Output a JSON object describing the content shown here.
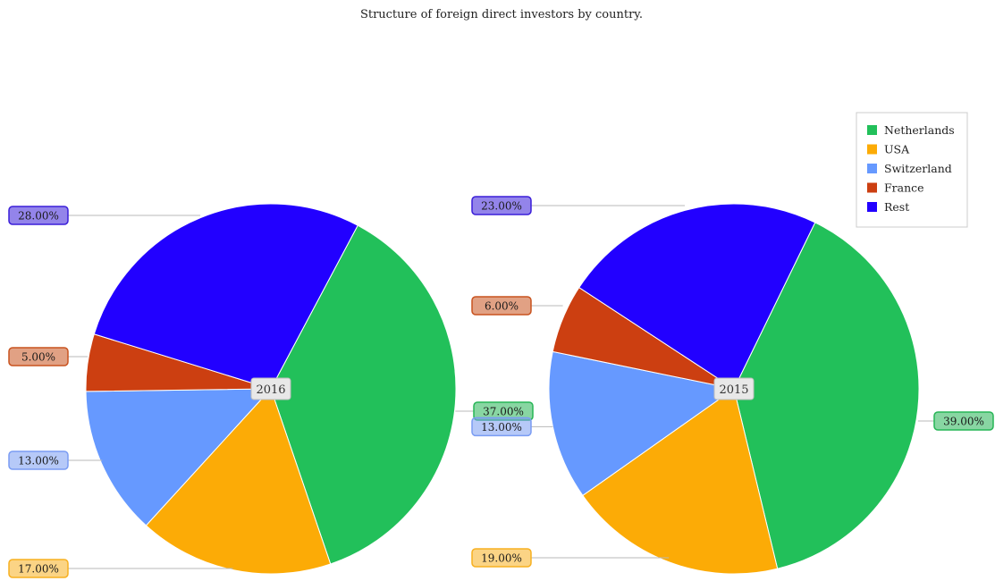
{
  "chart_data": {
    "type": "pie",
    "title": "Structure of foreign direct investors by country.",
    "legend_position": "top-right",
    "categories": [
      "Netherlands",
      "USA",
      "Switzerland",
      "France",
      "Rest"
    ],
    "colors": [
      "#22c05a",
      "#fcab06",
      "#6699ff",
      "#cc3f11",
      "#2200ff"
    ],
    "label_colors": [
      "#27b556",
      "#f7b020",
      "#7a9cf3",
      "#c9531f",
      "#3b1fd9"
    ],
    "series": [
      {
        "name": "2016",
        "values": [
          37,
          17,
          13,
          5,
          28
        ],
        "value_labels": [
          "37.00%",
          "17.00%",
          "13.00%",
          "5.00%",
          "28.00%"
        ]
      },
      {
        "name": "2015",
        "values": [
          39,
          19,
          13,
          6,
          23
        ],
        "value_labels": [
          "39.00%",
          "19.00%",
          "13.00%",
          "6.00%",
          "23.00%"
        ]
      }
    ]
  }
}
